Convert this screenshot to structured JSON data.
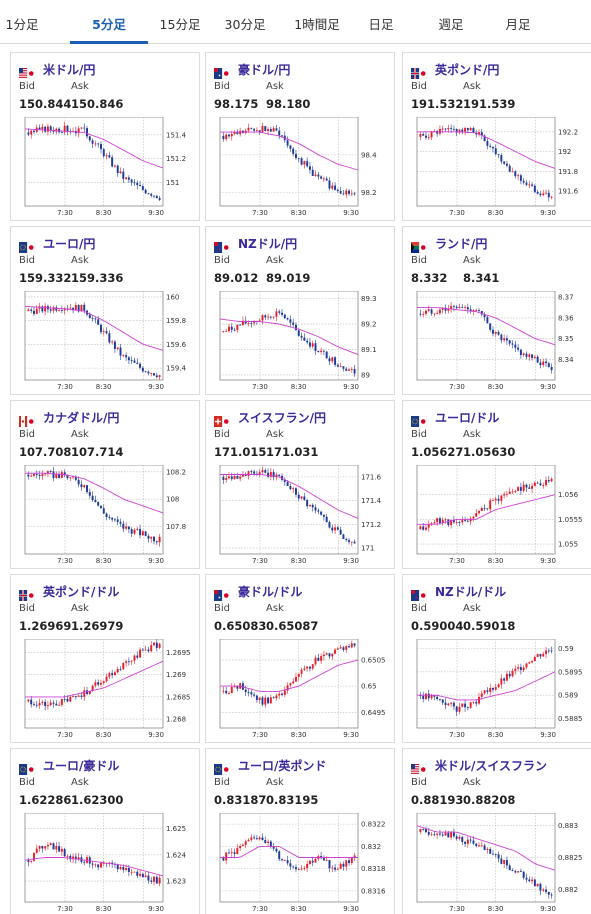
{
  "tabs": [
    {
      "label": "1分足",
      "active": false
    },
    {
      "label": "5分足",
      "active": true
    },
    {
      "label": "15分足",
      "active": false
    },
    {
      "label": "30分足",
      "active": false
    },
    {
      "label": "1時間足",
      "active": false
    },
    {
      "label": "日足",
      "active": false
    },
    {
      "label": "週足",
      "active": false
    },
    {
      "label": "月足",
      "active": false
    }
  ],
  "bid_label": "Bid",
  "ask_label": "Ask",
  "colors": {
    "up": "#e8202a",
    "down": "#1f3c9b",
    "ma": "#d13fd6",
    "grid": "#bbbbbb",
    "accent": "#1a5fb4",
    "pair_name": "#3b2a9a"
  },
  "cards": [
    {
      "pair": "米ドル/円",
      "flag": "us",
      "bid": "150.844",
      "ask": "150.846",
      "chart_data": {
        "type": "candlestick",
        "x_ticks": [
          "7:30",
          "8:30",
          "9:30"
        ],
        "y_ticks": [
          "151.4",
          "151.2",
          "151"
        ],
        "ylim": [
          150.8,
          151.55
        ],
        "trend": [
          151.42,
          151.45,
          151.45,
          151.43,
          151.25,
          151.05,
          150.95,
          150.88
        ],
        "ma": [
          151.45,
          151.44,
          151.43,
          151.42,
          151.36,
          151.27,
          151.18,
          151.12
        ]
      }
    },
    {
      "pair": "豪ドル/円",
      "flag": "au",
      "bid": "98.175",
      "ask": "98.180",
      "chart_data": {
        "type": "candlestick",
        "x_ticks": [
          "7:30",
          "8:30",
          "9:30"
        ],
        "y_ticks": [
          "98.4",
          "98.2"
        ],
        "ylim": [
          98.13,
          98.6
        ],
        "trend": [
          98.5,
          98.52,
          98.54,
          98.52,
          98.38,
          98.28,
          98.22,
          98.18
        ],
        "ma": [
          98.52,
          98.52,
          98.52,
          98.5,
          98.46,
          98.4,
          98.35,
          98.32
        ]
      }
    },
    {
      "pair": "英ポンド/円",
      "flag": "gb",
      "bid": "191.532",
      "ask": "191.539",
      "chart_data": {
        "type": "candlestick",
        "x_ticks": [
          "7:30",
          "8:30",
          "9:30"
        ],
        "y_ticks": [
          "192.2",
          "192",
          "191.8",
          "191.6"
        ],
        "ylim": [
          191.45,
          192.35
        ],
        "trend": [
          192.15,
          192.2,
          192.22,
          192.2,
          192.0,
          191.78,
          191.62,
          191.53
        ],
        "ma": [
          192.2,
          192.2,
          192.2,
          192.19,
          192.1,
          192.0,
          191.9,
          191.83
        ]
      }
    },
    {
      "pair": "ユーロ/円",
      "flag": "eu",
      "bid": "159.332",
      "ask": "159.336",
      "chart_data": {
        "type": "candlestick",
        "x_ticks": [
          "7:30",
          "8:30",
          "9:30"
        ],
        "y_ticks": [
          "160",
          "159.8",
          "159.6",
          "159.4"
        ],
        "ylim": [
          159.3,
          160.05
        ],
        "trend": [
          159.88,
          159.9,
          159.92,
          159.9,
          159.7,
          159.5,
          159.4,
          159.34
        ],
        "ma": [
          159.92,
          159.91,
          159.9,
          159.88,
          159.8,
          159.7,
          159.6,
          159.55
        ]
      }
    },
    {
      "pair": "NZドル/円",
      "flag": "nz",
      "bid": "89.012",
      "ask": "89.019",
      "chart_data": {
        "type": "candlestick",
        "x_ticks": [
          "7:30",
          "8:30",
          "9:30"
        ],
        "y_ticks": [
          "89.3",
          "89.2",
          "89.1",
          "89"
        ],
        "ylim": [
          88.98,
          89.33
        ],
        "trend": [
          89.17,
          89.2,
          89.22,
          89.25,
          89.16,
          89.1,
          89.05,
          89.01
        ],
        "ma": [
          89.22,
          89.21,
          89.21,
          89.2,
          89.18,
          89.15,
          89.11,
          89.08
        ]
      }
    },
    {
      "pair": "ランド/円",
      "flag": "za",
      "bid": "8.332",
      "ask": "8.341",
      "chart_data": {
        "type": "candlestick",
        "x_ticks": [
          "7:30",
          "8:30",
          "9:30"
        ],
        "y_ticks": [
          "8.37",
          "8.36",
          "8.35",
          "8.34"
        ],
        "ylim": [
          8.33,
          8.373
        ],
        "trend": [
          8.362,
          8.364,
          8.365,
          8.364,
          8.352,
          8.345,
          8.34,
          8.336
        ],
        "ma": [
          8.365,
          8.365,
          8.364,
          8.363,
          8.36,
          8.355,
          8.35,
          8.347
        ]
      }
    },
    {
      "pair": "カナダドル/円",
      "flag": "ca",
      "bid": "107.708",
      "ask": "107.714",
      "chart_data": {
        "type": "candlestick",
        "x_ticks": [
          "7:30",
          "8:30",
          "9:30"
        ],
        "y_ticks": [
          "108.2",
          "108",
          "107.8"
        ],
        "ylim": [
          107.6,
          108.25
        ],
        "trend": [
          108.18,
          108.18,
          108.17,
          108.1,
          107.9,
          107.8,
          107.75,
          107.7
        ],
        "ma": [
          108.19,
          108.19,
          108.18,
          108.15,
          108.08,
          108.0,
          107.95,
          107.9
        ]
      }
    },
    {
      "pair": "スイスフラン/円",
      "flag": "ch",
      "bid": "171.015",
      "ask": "171.031",
      "chart_data": {
        "type": "candlestick",
        "x_ticks": [
          "7:30",
          "8:30",
          "9:30"
        ],
        "y_ticks": [
          "171.6",
          "171.4",
          "171.2",
          "171"
        ],
        "ylim": [
          170.95,
          171.7
        ],
        "trend": [
          171.6,
          171.62,
          171.63,
          171.6,
          171.45,
          171.3,
          171.15,
          171.02
        ],
        "ma": [
          171.62,
          171.62,
          171.62,
          171.6,
          171.52,
          171.42,
          171.32,
          171.25
        ]
      }
    },
    {
      "pair": "ユーロ/ドル",
      "flag": "eu",
      "bid": "1.05627",
      "ask": "1.05630",
      "chart_data": {
        "type": "candlestick",
        "x_ticks": [
          "7:30",
          "8:30",
          "9:30"
        ],
        "y_ticks": [
          "1.056",
          "1.0555",
          "1.055"
        ],
        "ylim": [
          1.0548,
          1.0566
        ],
        "trend": [
          1.0553,
          1.0555,
          1.0554,
          1.0556,
          1.0559,
          1.0561,
          1.0562,
          1.0563
        ],
        "ma": [
          1.0554,
          1.0554,
          1.0555,
          1.0555,
          1.0557,
          1.0558,
          1.0559,
          1.056
        ]
      }
    },
    {
      "pair": "英ポンド/ドル",
      "flag": "gb",
      "bid": "1.26969",
      "ask": "1.26979",
      "chart_data": {
        "type": "candlestick",
        "x_ticks": [
          "7:30",
          "8:30",
          "9:30"
        ],
        "y_ticks": [
          "1.2695",
          "1.269",
          "1.2685",
          "1.268"
        ],
        "ylim": [
          1.2678,
          1.2698
        ],
        "trend": [
          1.2684,
          1.2683,
          1.2684,
          1.2686,
          1.2689,
          1.2692,
          1.2695,
          1.2697
        ],
        "ma": [
          1.2685,
          1.2685,
          1.2685,
          1.2686,
          1.2687,
          1.2689,
          1.2691,
          1.2693
        ]
      }
    },
    {
      "pair": "豪ドル/ドル",
      "flag": "au",
      "bid": "0.65083",
      "ask": "0.65087",
      "chart_data": {
        "type": "candlestick",
        "x_ticks": [
          "7:30",
          "8:30",
          "9:30"
        ],
        "y_ticks": [
          "0.6505",
          "0.65",
          "0.6495"
        ],
        "ylim": [
          0.6492,
          0.6509
        ],
        "trend": [
          0.6499,
          0.65,
          0.6497,
          0.6498,
          0.6502,
          0.6505,
          0.6507,
          0.6508
        ],
        "ma": [
          0.65,
          0.65,
          0.6499,
          0.6499,
          0.65,
          0.6502,
          0.6504,
          0.6505
        ]
      }
    },
    {
      "pair": "NZドル/ドル",
      "flag": "nz",
      "bid": "0.59004",
      "ask": "0.59018",
      "chart_data": {
        "type": "candlestick",
        "x_ticks": [
          "7:30",
          "8:30",
          "9:30"
        ],
        "y_ticks": [
          "0.59",
          "0.5895",
          "0.589",
          "0.5885"
        ],
        "ylim": [
          0.5883,
          0.5902
        ],
        "trend": [
          0.589,
          0.5889,
          0.5887,
          0.5889,
          0.5892,
          0.5895,
          0.5898,
          0.59
        ],
        "ma": [
          0.589,
          0.589,
          0.5889,
          0.5889,
          0.589,
          0.5891,
          0.5893,
          0.5895
        ]
      }
    },
    {
      "pair": "ユーロ/豪ドル",
      "flag": "eu",
      "bid": "1.62286",
      "ask": "1.62300",
      "chart_data": {
        "type": "candlestick",
        "x_ticks": [
          "7:30",
          "8:30",
          "9:30"
        ],
        "y_ticks": [
          "1.625",
          "1.624",
          "1.623"
        ],
        "ylim": [
          1.6222,
          1.6256
        ],
        "trend": [
          1.6238,
          1.6245,
          1.624,
          1.6238,
          1.6236,
          1.6235,
          1.6232,
          1.623
        ],
        "ma": [
          1.6238,
          1.6239,
          1.6239,
          1.6238,
          1.6237,
          1.6236,
          1.6234,
          1.6232
        ]
      }
    },
    {
      "pair": "ユーロ/英ポンド",
      "flag": "eu",
      "bid": "0.83187",
      "ask": "0.83195",
      "chart_data": {
        "type": "candlestick",
        "x_ticks": [
          "7:30",
          "8:30",
          "9:30"
        ],
        "y_ticks": [
          "0.8322",
          "0.832",
          "0.8318",
          "0.8316"
        ],
        "ylim": [
          0.8315,
          0.8323
        ],
        "trend": [
          0.8319,
          0.832,
          0.8321,
          0.8319,
          0.8318,
          0.8319,
          0.8318,
          0.8319
        ],
        "ma": [
          0.8319,
          0.8319,
          0.832,
          0.832,
          0.8319,
          0.8319,
          0.8319,
          0.8319
        ]
      }
    },
    {
      "pair": "米ドル/スイスフラン",
      "flag": "us",
      "bid": "0.88193",
      "ask": "0.88208",
      "chart_data": {
        "type": "candlestick",
        "x_ticks": [
          "7:30",
          "8:30",
          "9:30"
        ],
        "y_ticks": [
          "0.883",
          "0.8825",
          "0.882"
        ],
        "ylim": [
          0.8818,
          0.8832
        ],
        "trend": [
          0.8829,
          0.8829,
          0.8828,
          0.8827,
          0.8825,
          0.8823,
          0.8821,
          0.8819
        ],
        "ma": [
          0.883,
          0.8829,
          0.8829,
          0.8828,
          0.8827,
          0.8826,
          0.8824,
          0.8823
        ]
      }
    }
  ]
}
